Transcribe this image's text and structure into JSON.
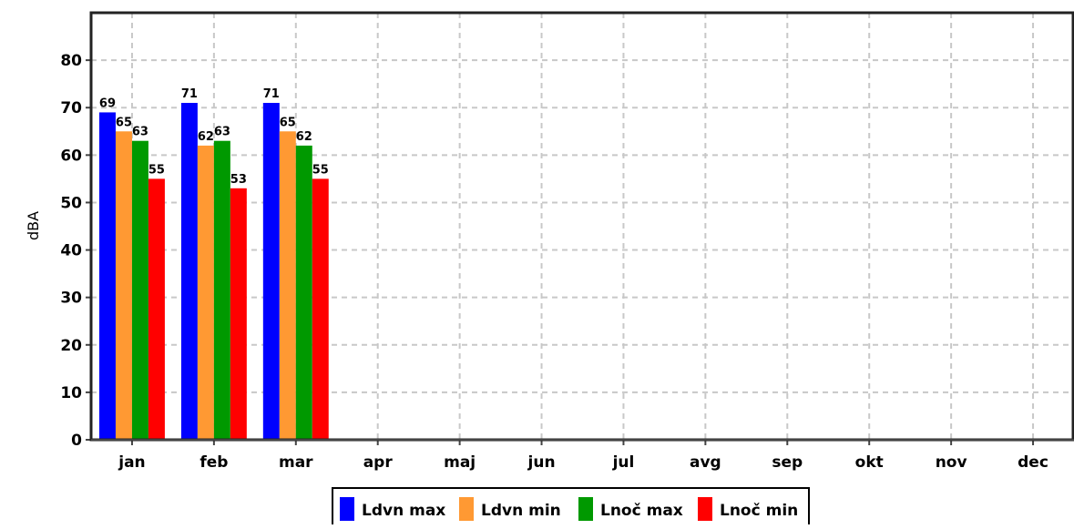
{
  "chart_data": {
    "type": "bar",
    "title": "",
    "xlabel": "",
    "ylabel": "dBA",
    "ylim": [
      0,
      90
    ],
    "yticks": [
      0,
      10,
      20,
      30,
      40,
      50,
      60,
      70,
      80
    ],
    "grid": true,
    "legend_position": "bottom",
    "categories": [
      "jan",
      "feb",
      "mar",
      "apr",
      "maj",
      "jun",
      "jul",
      "avg",
      "sep",
      "okt",
      "nov",
      "dec"
    ],
    "series": [
      {
        "name": "Ldvn max",
        "color": "#0000ff",
        "values": [
          69,
          71,
          71,
          null,
          null,
          null,
          null,
          null,
          null,
          null,
          null,
          null
        ]
      },
      {
        "name": "Ldvn min",
        "color": "#ff9933",
        "values": [
          65,
          62,
          65,
          null,
          null,
          null,
          null,
          null,
          null,
          null,
          null,
          null
        ]
      },
      {
        "name": "Lnoč max",
        "color": "#009900",
        "values": [
          63,
          63,
          62,
          null,
          null,
          null,
          null,
          null,
          null,
          null,
          null,
          null
        ]
      },
      {
        "name": "Lnoč min",
        "color": "#ff0000",
        "values": [
          55,
          53,
          55,
          null,
          null,
          null,
          null,
          null,
          null,
          null,
          null,
          null
        ]
      }
    ]
  }
}
